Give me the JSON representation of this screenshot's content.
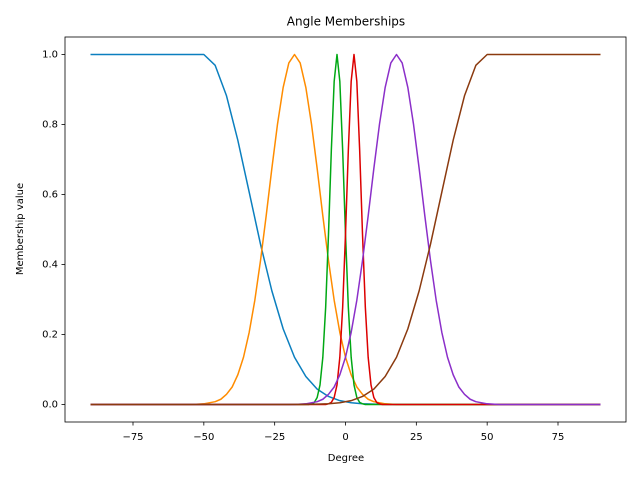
{
  "chart_data": {
    "type": "line",
    "title": "Angle Memberships",
    "x_label": "Degree",
    "y_label": "Membership value",
    "xlim": [
      -99,
      99
    ],
    "ylim": [
      -0.05,
      1.05
    ],
    "xticks": [
      {
        "value": -75,
        "label": "−75"
      },
      {
        "value": -50,
        "label": "−50"
      },
      {
        "value": -25,
        "label": "−25"
      },
      0,
      25,
      50,
      75
    ],
    "yticks": [
      {
        "value": 0,
        "label": "0.0"
      },
      0.2,
      0.4,
      0.6,
      0.8,
      {
        "value": 1,
        "label": "1.0"
      }
    ],
    "grid": false,
    "series": [
      {
        "color": "#0b7fbf",
        "x": [
          -90,
          -50,
          -46,
          -42,
          -38,
          -34,
          -30,
          -26,
          -22,
          -18,
          -14,
          -10,
          -6,
          -2,
          2,
          6,
          10,
          20,
          90
        ],
        "values": [
          1,
          1,
          0.969,
          0.882,
          0.755,
          0.607,
          0.458,
          0.325,
          0.216,
          0.135,
          0.08,
          0.044,
          0.023,
          0.011,
          0.005,
          0.002,
          0.001,
          0,
          0
        ]
      },
      {
        "color": "#ff8c00",
        "x": [
          -90,
          -54,
          -50,
          -46,
          -44,
          -42,
          -40,
          -38,
          -36,
          -34,
          -32,
          -30,
          -28,
          -26,
          -24,
          -22,
          -20,
          -18,
          -16,
          -14,
          -12,
          -10,
          -8,
          -6,
          -4,
          -2,
          0,
          2,
          4,
          6,
          8,
          10,
          14,
          18,
          90
        ],
        "values": [
          0,
          0,
          0.002,
          0.008,
          0.015,
          0.029,
          0.05,
          0.085,
          0.135,
          0.206,
          0.298,
          0.411,
          0.539,
          0.674,
          0.801,
          0.906,
          0.976,
          1,
          0.976,
          0.906,
          0.801,
          0.674,
          0.539,
          0.411,
          0.298,
          0.206,
          0.135,
          0.085,
          0.05,
          0.029,
          0.015,
          0.008,
          0.002,
          0,
          0
        ]
      },
      {
        "color": "#00a814",
        "x": [
          -90,
          -13,
          -12,
          -11,
          -10,
          -9,
          -8,
          -7,
          -6,
          -5,
          -4,
          -3,
          -2,
          -1,
          0,
          1,
          2,
          3,
          4,
          5,
          6,
          7,
          90
        ],
        "values": [
          0,
          0,
          0.002,
          0.006,
          0.02,
          0.056,
          0.135,
          0.278,
          0.487,
          0.726,
          0.923,
          1,
          0.923,
          0.726,
          0.487,
          0.278,
          0.135,
          0.056,
          0.02,
          0.006,
          0.002,
          0,
          0
        ]
      },
      {
        "color": "#dc0000",
        "x": [
          -90,
          -7,
          -6,
          -5,
          -4,
          -3,
          -2,
          -1,
          0,
          1,
          2,
          3,
          4,
          5,
          6,
          7,
          8,
          9,
          10,
          11,
          12,
          13,
          90
        ],
        "values": [
          0,
          0,
          0.002,
          0.006,
          0.02,
          0.056,
          0.135,
          0.278,
          0.487,
          0.726,
          0.923,
          1,
          0.923,
          0.726,
          0.487,
          0.278,
          0.135,
          0.056,
          0.02,
          0.006,
          0.002,
          0,
          0
        ]
      },
      {
        "color": "#8b2fc9",
        "x": [
          -90,
          -18,
          -14,
          -10,
          -8,
          -6,
          -4,
          -2,
          0,
          2,
          4,
          6,
          8,
          10,
          12,
          14,
          16,
          18,
          20,
          22,
          24,
          26,
          28,
          30,
          32,
          34,
          36,
          38,
          40,
          42,
          44,
          46,
          50,
          54,
          90
        ],
        "values": [
          0,
          0,
          0.002,
          0.008,
          0.015,
          0.029,
          0.05,
          0.085,
          0.135,
          0.206,
          0.298,
          0.411,
          0.539,
          0.674,
          0.801,
          0.906,
          0.976,
          1,
          0.976,
          0.906,
          0.801,
          0.674,
          0.539,
          0.411,
          0.298,
          0.206,
          0.135,
          0.085,
          0.05,
          0.029,
          0.015,
          0.008,
          0.002,
          0,
          0
        ]
      },
      {
        "color": "#8b3a0f",
        "x": [
          -90,
          -20,
          -10,
          -6,
          -2,
          2,
          6,
          10,
          14,
          18,
          22,
          26,
          30,
          34,
          38,
          42,
          46,
          50,
          90
        ],
        "values": [
          0,
          0,
          0.001,
          0.002,
          0.005,
          0.011,
          0.023,
          0.044,
          0.08,
          0.135,
          0.216,
          0.325,
          0.458,
          0.607,
          0.755,
          0.882,
          0.969,
          1,
          1
        ]
      }
    ]
  }
}
